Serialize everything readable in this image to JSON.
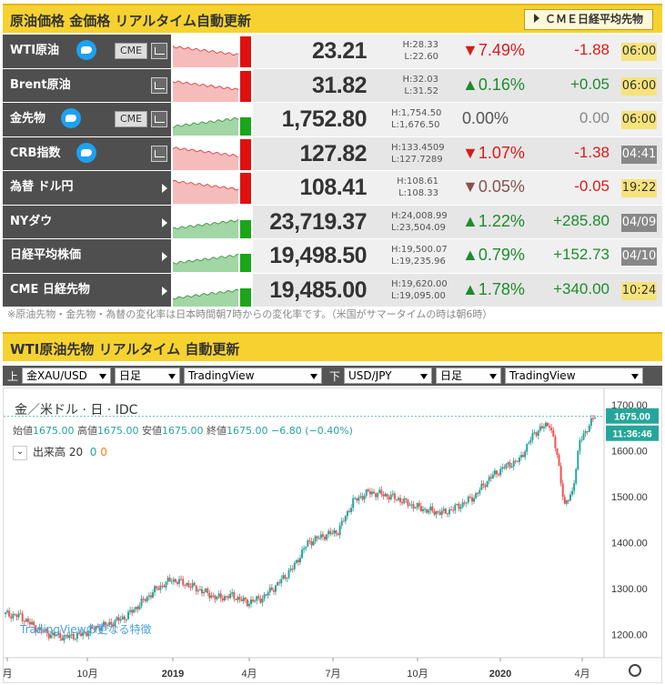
{
  "header1": {
    "title": "原油価格 金価格 リアルタイム自動更新",
    "button": "ＣＭＥ日経平均先物"
  },
  "rows": [
    {
      "name": "WTI原油",
      "twitter": true,
      "cme": "CME",
      "chart": true,
      "arrow": false,
      "price": "23.21",
      "high": "H:28.33",
      "low": "L:22.60",
      "pct": "▼7.49%",
      "dir": "down",
      "chg": "-1.88",
      "time": "06:00",
      "time_style": "y",
      "spark": "down"
    },
    {
      "name": "Brent原油",
      "twitter": false,
      "cme": "",
      "chart": true,
      "arrow": false,
      "price": "31.82",
      "high": "H:32.03",
      "low": "L:31.52",
      "pct": "▲0.16%",
      "dir": "up",
      "chg": "+0.05",
      "time": "06:00",
      "time_style": "y",
      "spark": "down"
    },
    {
      "name": "金先物",
      "twitter": true,
      "cme": "CME",
      "chart": true,
      "arrow": false,
      "price": "1,752.80",
      "high": "H:1,754.50",
      "low": "L:1,676.50",
      "pct": "0.00%",
      "dir": "flat",
      "chg": "0.00",
      "time": "06:00",
      "time_style": "y",
      "spark": "up"
    },
    {
      "name": "CRB指数",
      "twitter": true,
      "cme": "",
      "chart": true,
      "arrow": false,
      "price": "127.82",
      "high": "H:133.4509",
      "low": "L:127.7289",
      "pct": "▼1.07%",
      "dir": "down",
      "chg": "-1.38",
      "time": "04:41",
      "time_style": "g",
      "spark": "down"
    },
    {
      "name": "為替 ドル円",
      "twitter": false,
      "cme": "",
      "chart": false,
      "arrow": true,
      "price": "108.41",
      "high": "H:108.61",
      "low": "L:108.33",
      "pct": "▼0.05%",
      "dir": "dn2",
      "chg": "-0.05",
      "time": "19:22",
      "time_style": "y",
      "spark": "down"
    },
    {
      "name": "NYダウ",
      "twitter": false,
      "cme": "",
      "chart": false,
      "arrow": true,
      "price": "23,719.37",
      "high": "H:24,008.99",
      "low": "L:23,504.09",
      "pct": "▲1.22%",
      "dir": "up",
      "chg": "+285.80",
      "time": "04/09",
      "time_style": "g",
      "spark": "up"
    },
    {
      "name": "日経平均株価",
      "twitter": false,
      "cme": "",
      "chart": false,
      "arrow": true,
      "price": "19,498.50",
      "high": "H:19,500.07",
      "low": "L:19,235.96",
      "pct": "▲0.79%",
      "dir": "up",
      "chg": "+152.73",
      "time": "04/10",
      "time_style": "g",
      "spark": "up"
    },
    {
      "name": "CME 日経先物",
      "twitter": false,
      "cme": "",
      "chart": false,
      "arrow": true,
      "price": "19,485.00",
      "high": "H:19,620.00",
      "low": "L:19,095.00",
      "pct": "▲1.78%",
      "dir": "up",
      "chg": "+340.00",
      "time": "10:24",
      "time_style": "y",
      "spark": "up"
    }
  ],
  "note": "※原油先物・金先物・為替の変化率は日本時間朝7時からの変化率です。（米国がサマータイムの時は朝6時）",
  "header2": {
    "title": "WTI原油先物 リアルタイム 自動更新"
  },
  "controls": {
    "upper_label": "上",
    "lower_label": "下",
    "sel1": "金XAU/USD",
    "sel2": "日足",
    "sel3": "TradingView",
    "sel4": "USD/JPY",
    "sel5": "日足",
    "sel6": "TradingView"
  },
  "chart_title": "金／米ドル · 日 · IDC",
  "ohlc": {
    "o_label": "始値",
    "o": "1675.00",
    "h_label": "高値",
    "h": "1675.00",
    "l_label": "安値",
    "l": "1675.00",
    "c_label": "終値",
    "c": "1675.00",
    "chg": "−6.80 (−0.40%)"
  },
  "volume": {
    "label": "出来高",
    "period": "20",
    "v1": "0",
    "v2": "0"
  },
  "tv_link": "TradingViewの更なる特徴",
  "price_tag": "1675.00",
  "time_tag": "11:36:46",
  "colors": {
    "up": "#26a69a",
    "down": "#ef5350",
    "header": "#f6d230"
  },
  "chart_data": {
    "type": "candlestick",
    "x_ticks": [
      "月",
      "10月",
      "2019",
      "4月",
      "7月",
      "10月",
      "2020",
      "4月"
    ],
    "y_ticks": [
      1200,
      1300,
      1400,
      1500,
      1600,
      1700
    ],
    "ylim": [
      1150,
      1720
    ],
    "last": 1675.0,
    "path_points": [
      [
        0,
        1245
      ],
      [
        4,
        1240
      ],
      [
        8,
        1215
      ],
      [
        12,
        1200
      ],
      [
        16,
        1195
      ],
      [
        20,
        1200
      ],
      [
        24,
        1215
      ],
      [
        28,
        1225
      ],
      [
        32,
        1240
      ],
      [
        36,
        1270
      ],
      [
        40,
        1300
      ],
      [
        44,
        1320
      ],
      [
        48,
        1310
      ],
      [
        52,
        1295
      ],
      [
        56,
        1280
      ],
      [
        60,
        1285
      ],
      [
        64,
        1270
      ],
      [
        68,
        1280
      ],
      [
        72,
        1310
      ],
      [
        76,
        1345
      ],
      [
        80,
        1400
      ],
      [
        84,
        1415
      ],
      [
        88,
        1425
      ],
      [
        92,
        1490
      ],
      [
        96,
        1510
      ],
      [
        100,
        1505
      ],
      [
        104,
        1495
      ],
      [
        108,
        1480
      ],
      [
        112,
        1470
      ],
      [
        116,
        1465
      ],
      [
        120,
        1480
      ],
      [
        124,
        1500
      ],
      [
        128,
        1540
      ],
      [
        132,
        1565
      ],
      [
        136,
        1580
      ],
      [
        140,
        1640
      ],
      [
        144,
        1660
      ],
      [
        146,
        1590
      ],
      [
        148,
        1480
      ],
      [
        150,
        1510
      ],
      [
        152,
        1620
      ],
      [
        154,
        1650
      ],
      [
        156,
        1675
      ]
    ]
  }
}
